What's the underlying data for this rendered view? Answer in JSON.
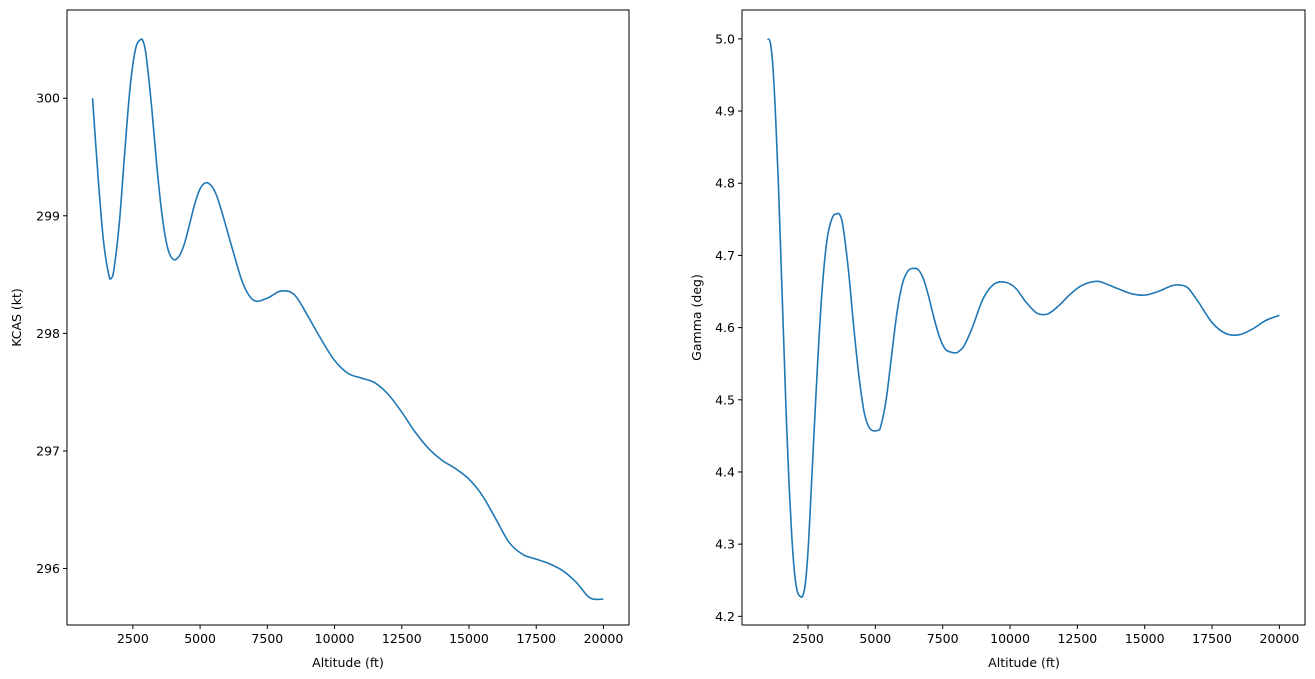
{
  "chart_data": [
    {
      "type": "line",
      "title": "",
      "xlabel": "Altitude (ft)",
      "ylabel": "KCAS (kt)",
      "xlim": [
        50,
        20950
      ],
      "ylim": [
        295.52,
        300.75
      ],
      "xticks": [
        2500,
        5000,
        7500,
        10000,
        12500,
        15000,
        17500,
        20000
      ],
      "xtick_labels": [
        "2500",
        "5000",
        "7500",
        "10000",
        "12500",
        "15000",
        "17500",
        "20000"
      ],
      "yticks": [
        296,
        297,
        298,
        299,
        300
      ],
      "ytick_labels": [
        "296",
        "297",
        "298",
        "299",
        "300"
      ],
      "grid": false,
      "color": "#1f77b4",
      "series": [
        {
          "x": [
            1000,
            1200,
            1400,
            1600,
            1700,
            1800,
            2000,
            2200,
            2400,
            2600,
            2800,
            2900,
            3000,
            3200,
            3400,
            3600,
            3800,
            4000,
            4200,
            4400,
            4600,
            4800,
            5000,
            5200,
            5400,
            5600,
            5800,
            6000,
            6200,
            6600,
            7000,
            7500,
            8000,
            8500,
            9000,
            9500,
            10000,
            10500,
            11000,
            11500,
            12000,
            12500,
            13000,
            13500,
            14000,
            14500,
            15000,
            15500,
            16000,
            16500,
            17000,
            17500,
            18000,
            18500,
            19000,
            19500,
            20000
          ],
          "y": [
            300.0,
            299.35,
            298.8,
            298.5,
            298.47,
            298.55,
            298.95,
            299.55,
            300.1,
            300.42,
            300.5,
            300.47,
            300.35,
            299.92,
            299.4,
            298.98,
            298.72,
            298.63,
            298.65,
            298.75,
            298.92,
            299.1,
            299.23,
            299.28,
            299.26,
            299.18,
            299.04,
            298.88,
            298.72,
            298.42,
            298.28,
            298.3,
            298.36,
            298.33,
            298.15,
            297.95,
            297.77,
            297.66,
            297.62,
            297.58,
            297.48,
            297.33,
            297.16,
            297.02,
            296.92,
            296.85,
            296.76,
            296.62,
            296.42,
            296.22,
            296.12,
            296.08,
            296.04,
            295.98,
            295.88,
            295.75,
            295.74
          ]
        }
      ]
    },
    {
      "type": "line",
      "title": "",
      "xlabel": "Altitude (ft)",
      "ylabel": "Gamma (deg)",
      "xlim": [
        50,
        20950
      ],
      "ylim": [
        4.188,
        5.04
      ],
      "xticks": [
        2500,
        5000,
        7500,
        10000,
        12500,
        15000,
        17500,
        20000
      ],
      "xtick_labels": [
        "2500",
        "5000",
        "7500",
        "10000",
        "12500",
        "15000",
        "17500",
        "20000"
      ],
      "yticks": [
        4.2,
        4.3,
        4.4,
        4.5,
        4.6,
        4.7,
        4.8,
        4.9,
        5.0
      ],
      "ytick_labels": [
        "4.2",
        "4.3",
        "4.4",
        "4.5",
        "4.6",
        "4.7",
        "4.8",
        "4.9",
        "5.0"
      ],
      "grid": false,
      "color": "#1f77b4",
      "series": [
        {
          "x": [
            1000,
            1100,
            1200,
            1300,
            1400,
            1500,
            1600,
            1700,
            1800,
            1900,
            2000,
            2100,
            2200,
            2300,
            2400,
            2500,
            2600,
            2800,
            3000,
            3200,
            3400,
            3600,
            3700,
            3800,
            4000,
            4200,
            4400,
            4600,
            4800,
            5000,
            5100,
            5200,
            5400,
            5600,
            5800,
            6000,
            6200,
            6400,
            6600,
            6800,
            7000,
            7200,
            7400,
            7600,
            7800,
            8000,
            8100,
            8300,
            8600,
            9000,
            9400,
            9800,
            10200,
            10600,
            11000,
            11400,
            11800,
            12200,
            12600,
            13000,
            13300,
            13600,
            14000,
            14500,
            15000,
            15500,
            16000,
            16300,
            16600,
            17000,
            17500,
            18000,
            18500,
            19000,
            19500,
            20000
          ],
          "y": [
            5.0,
            4.995,
            4.96,
            4.89,
            4.8,
            4.69,
            4.58,
            4.47,
            4.38,
            4.31,
            4.26,
            4.235,
            4.228,
            4.228,
            4.245,
            4.29,
            4.36,
            4.51,
            4.64,
            4.72,
            4.752,
            4.758,
            4.755,
            4.74,
            4.68,
            4.6,
            4.53,
            4.48,
            4.46,
            4.457,
            4.458,
            4.463,
            4.5,
            4.56,
            4.62,
            4.66,
            4.678,
            4.682,
            4.68,
            4.666,
            4.64,
            4.61,
            4.585,
            4.57,
            4.566,
            4.565,
            4.567,
            4.575,
            4.6,
            4.64,
            4.66,
            4.663,
            4.655,
            4.635,
            4.62,
            4.619,
            4.63,
            4.645,
            4.657,
            4.663,
            4.664,
            4.66,
            4.654,
            4.647,
            4.645,
            4.65,
            4.658,
            4.659,
            4.655,
            4.635,
            4.607,
            4.592,
            4.59,
            4.598,
            4.61,
            4.617
          ]
        }
      ]
    }
  ]
}
